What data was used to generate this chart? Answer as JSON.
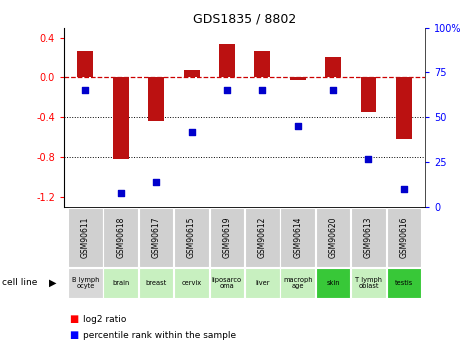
{
  "title": "GDS1835 / 8802",
  "samples": [
    "GSM90611",
    "GSM90618",
    "GSM90617",
    "GSM90615",
    "GSM90619",
    "GSM90612",
    "GSM90614",
    "GSM90620",
    "GSM90613",
    "GSM90616"
  ],
  "cell_lines": [
    "B lymph\nocyte",
    "brain",
    "breast",
    "cervix",
    "liposarco\noma",
    "liver",
    "macroph\nage",
    "skin",
    "T lymph\noblast",
    "testis"
  ],
  "cell_line_colors": [
    "#d8d8d8",
    "#c8f0c0",
    "#c8f0c0",
    "#c8f0c0",
    "#c8f0c0",
    "#c8f0c0",
    "#c8f0c0",
    "#38c838",
    "#c8f0c0",
    "#38c838"
  ],
  "log2_ratio": [
    0.27,
    -0.82,
    -0.44,
    0.07,
    0.34,
    0.27,
    -0.03,
    0.2,
    -0.35,
    -0.62
  ],
  "percentile_rank": [
    65,
    8,
    14,
    42,
    65,
    65,
    45,
    65,
    27,
    10
  ],
  "left_ylim": [
    -1.3,
    0.5
  ],
  "right_ylim": [
    0,
    100
  ],
  "left_yticks": [
    -1.2,
    -0.8,
    -0.4,
    0.0,
    0.4
  ],
  "right_yticks": [
    0,
    25,
    50,
    75,
    100
  ],
  "bar_color": "#bb1111",
  "dot_color": "#0000cc",
  "hline_color": "#cc0000",
  "background_color": "#ffffff"
}
